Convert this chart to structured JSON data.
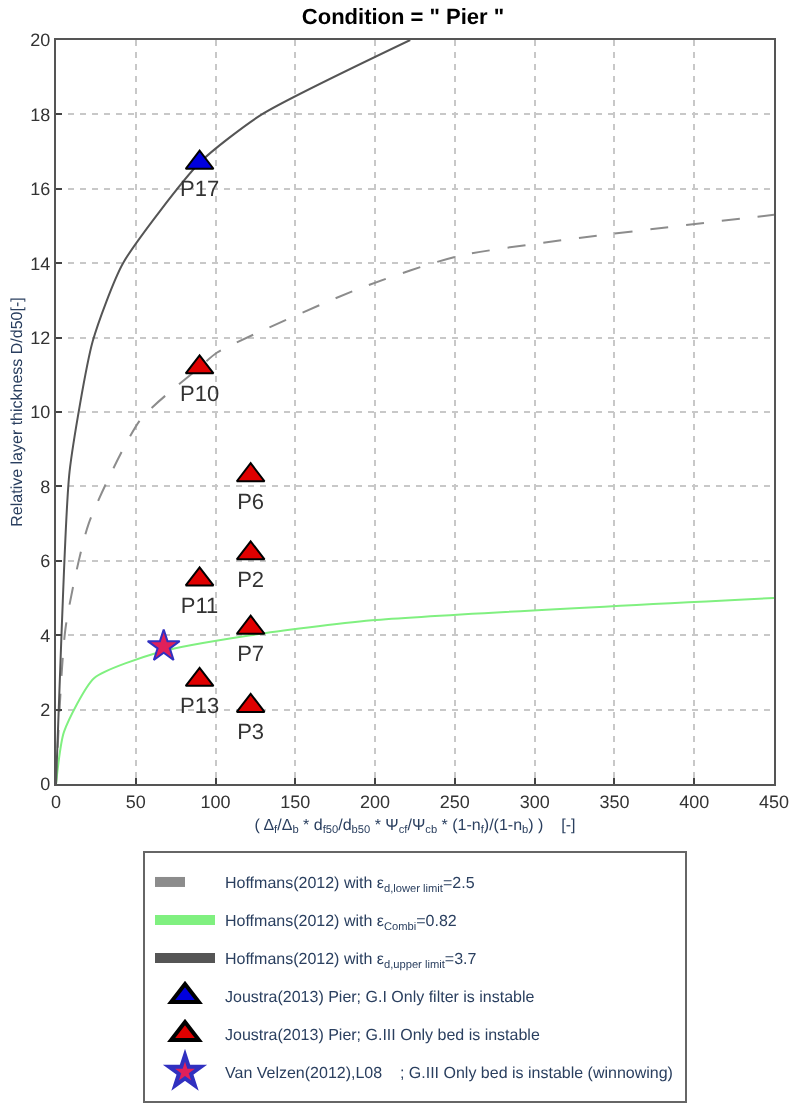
{
  "chart_data": {
    "type": "line",
    "title": "Condition = \" Pier \"",
    "xlabel": "( Δ$_{f}$/Δ$_{b}$ * d$_{f50}$/d$_{b50}$ * Ψ$_{cf}$/Ψ$_{cb}$ * (1-n$_{f}$)/(1-n$_{b}$) )    [-]",
    "ylabel": "Relative layer thickness D/d50[-]",
    "xlim": [
      0,
      450
    ],
    "xticks": [
      0,
      50,
      100,
      150,
      200,
      250,
      300,
      350,
      400,
      450
    ],
    "ylim": [
      0,
      20
    ],
    "yticks": [
      0,
      2,
      4,
      6,
      8,
      10,
      12,
      14,
      16,
      18,
      20
    ],
    "grid": true,
    "legend": "bottom",
    "series": [
      {
        "name": "Hoffmans(2012) with ε$_{d,lower limit}$=2.5",
        "line_style": "dashed",
        "color": "#8c8c8c",
        "x": [
          0,
          6,
          20.5,
          53,
          90,
          101,
          189,
          253,
          450
        ],
        "values": [
          0,
          4.2,
          7.0,
          9.8,
          11.2,
          11.6,
          13.3,
          14.2,
          15.3
        ]
      },
      {
        "name": "Hoffmans(2012) with ε$_{Combi}$=0.82",
        "line_style": "solid",
        "color": "#80f080",
        "x": [
          0,
          5,
          24,
          65,
          122,
          198,
          450
        ],
        "values": [
          0,
          1.4,
          2.85,
          3.55,
          4.0,
          4.4,
          5.0
        ]
      },
      {
        "name": "Hoffmans(2012) with ε$_{d,upper limit}$=3.7",
        "line_style": "solid",
        "color": "#555555",
        "x": [
          0,
          3.6,
          8.5,
          23,
          42,
          90,
          129,
          222
        ],
        "values": [
          0,
          4.2,
          8.4,
          11.9,
          14.0,
          16.7,
          18.0,
          20.0
        ]
      },
      {
        "name": "Joustra(2013) Pier; G.I Only filter is instable",
        "type": "scatter",
        "marker": "triangle",
        "color": "#0000dd",
        "x": [
          90
        ],
        "values": [
          16.7
        ],
        "value_labels": [
          "P17"
        ]
      },
      {
        "name": "Joustra(2013) Pier; G.III Only bed is instable",
        "type": "scatter",
        "marker": "triangle",
        "color": "#e00000",
        "x": [
          90,
          122,
          122,
          90,
          122,
          90,
          122
        ],
        "values": [
          11.2,
          8.3,
          6.2,
          5.5,
          4.2,
          2.8,
          2.1
        ],
        "value_labels": [
          "P10",
          "P6",
          "P2",
          "P11",
          "P7",
          "P13",
          "P3"
        ]
      },
      {
        "name": "Van Velzen(2012),L08    ; G.III Only bed is instable (winnowing)",
        "type": "scatter",
        "marker": "star",
        "color": "#e0205a",
        "x": [
          67.5
        ],
        "values": [
          3.7
        ]
      }
    ]
  }
}
